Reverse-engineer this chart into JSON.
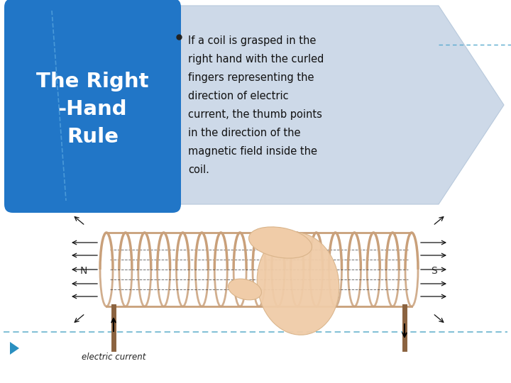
{
  "bg_color": "#ffffff",
  "title_box_color": "#2176c7",
  "title_text": "The Right\n-Hand\nRule",
  "title_text_color": "#ffffff",
  "arrow_body_color": "#cdd9e8",
  "arrow_edge_color": "#b8c9dc",
  "bullet_color": "#111111",
  "dashed_line_color": "#5aabcf",
  "bottom_dashed_color": "#6ab4ce",
  "triangle_color": "#2a8fc0",
  "coil_color": "#c9a07a",
  "hand_color": "#f0cca8",
  "hand_edge_color": "#d9b48a",
  "wire_color": "#8B6340",
  "label_N": "N",
  "label_S": "S",
  "label_current": "electric current",
  "bullet_lines": [
    "If a coil is grasped in the",
    "right hand with the curled",
    "fingers representing the",
    "direction of electric",
    "current, the thumb points",
    "in the direction of the",
    "magnetic field inside the",
    "coil."
  ]
}
